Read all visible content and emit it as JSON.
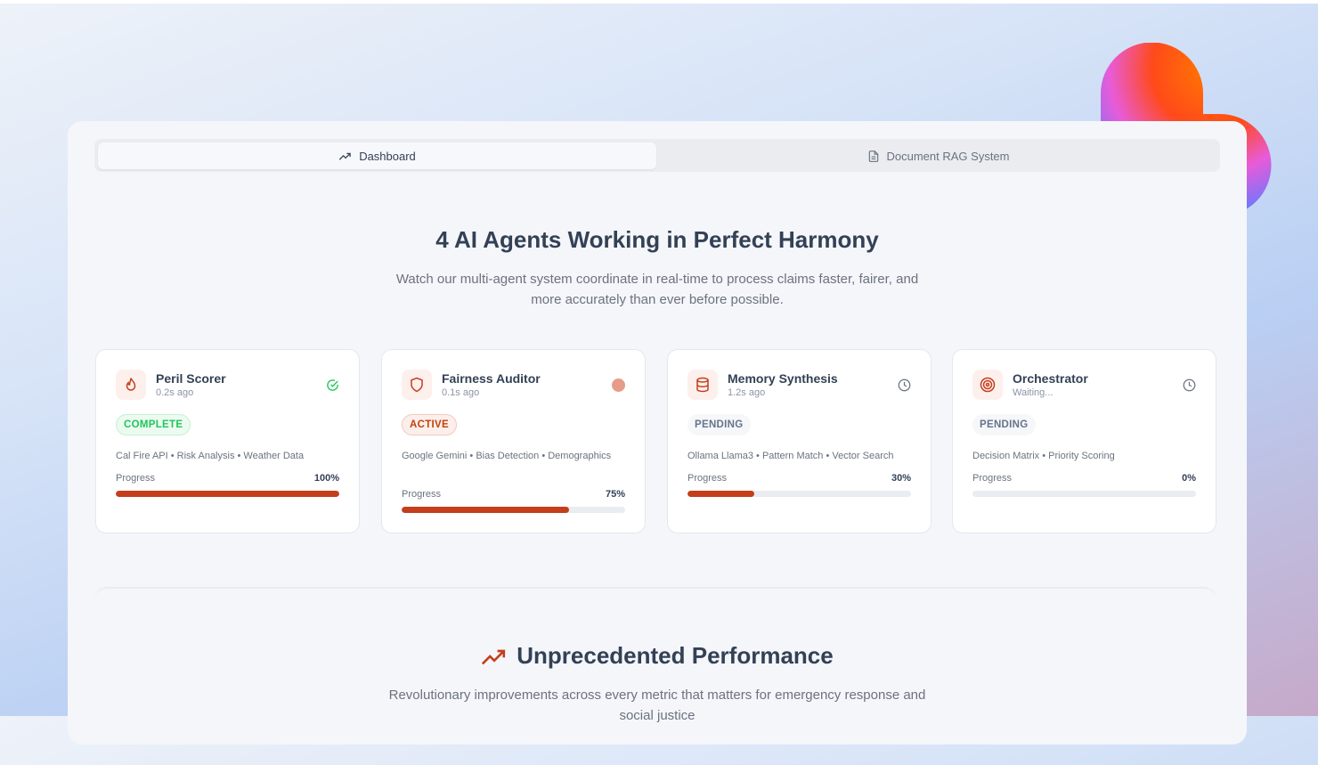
{
  "tabs": [
    {
      "label": "Dashboard",
      "icon": "trending-up-icon",
      "active": true
    },
    {
      "label": "Document RAG System",
      "icon": "file-text-icon",
      "active": false
    }
  ],
  "hero": {
    "title": "4 AI Agents Working in Perfect Harmony",
    "subtitle": "Watch our multi-agent system coordinate in real-time to process claims faster, fairer, and more accurately than ever before possible."
  },
  "agents": [
    {
      "name": "Peril Scorer",
      "time": "0.2s ago",
      "icon": "flame-icon",
      "status_icon": "check-circle-icon",
      "badge": "COMPLETE",
      "tags": "Cal Fire API • Risk Analysis • Weather Data",
      "progress_label": "Progress",
      "progress_text": "100%",
      "progress": 100
    },
    {
      "name": "Fairness Auditor",
      "time": "0.1s ago",
      "icon": "shield-icon",
      "status_icon": "pulse-dot-icon",
      "badge": "ACTIVE",
      "tags": "Google Gemini • Bias Detection • Demographics",
      "progress_label": "Progress",
      "progress_text": "75%",
      "progress": 75
    },
    {
      "name": "Memory Synthesis",
      "time": "1.2s ago",
      "icon": "database-icon",
      "status_icon": "clock-icon",
      "badge": "PENDING",
      "tags": "Ollama Llama3 • Pattern Match • Vector Search",
      "progress_label": "Progress",
      "progress_text": "30%",
      "progress": 30
    },
    {
      "name": "Orchestrator",
      "time": "Waiting...",
      "icon": "target-icon",
      "status_icon": "clock-icon",
      "badge": "PENDING",
      "tags": "Decision Matrix • Priority Scoring",
      "progress_label": "Progress",
      "progress_text": "0%",
      "progress": 0
    }
  ],
  "performance": {
    "title": "Unprecedented Performance",
    "subtitle": "Revolutionary improvements across every metric that matters for emergency response and social justice"
  },
  "colors": {
    "accent": "#c43e1c",
    "complete": "#22c55e",
    "text": "#334155"
  }
}
